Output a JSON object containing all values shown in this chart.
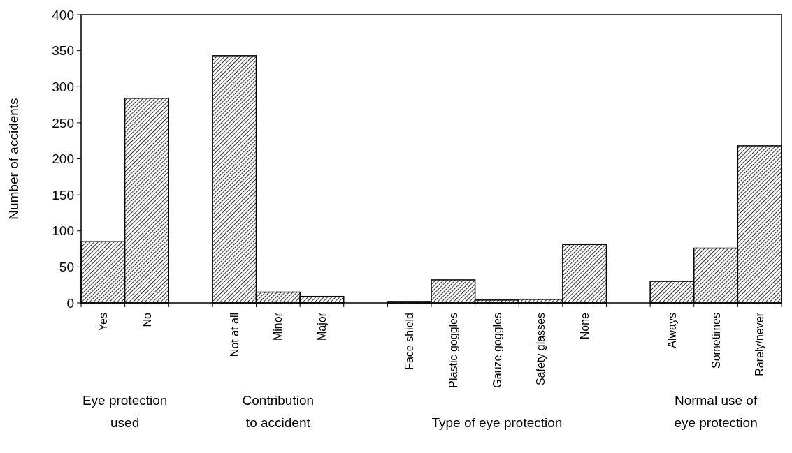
{
  "chart_data": {
    "type": "bar",
    "ylabel": "Number of accidents",
    "categories": [
      "Yes",
      "No",
      null,
      "Not at all",
      "Minor",
      "Major",
      null,
      "Face shield",
      "Plastic goggles",
      "Gauze goggles",
      "Safety glasses",
      "None",
      null,
      "Always",
      "Sometimes",
      "Rarely/never"
    ],
    "values": [
      85,
      284,
      null,
      343,
      15,
      9,
      null,
      2,
      32,
      4,
      5,
      81,
      null,
      30,
      76,
      218
    ],
    "color": "#000000",
    "ylim": [
      0,
      400
    ],
    "yticks": [
      0,
      50,
      100,
      150,
      200,
      250,
      300,
      350,
      400
    ],
    "grid": false,
    "annotations": [
      "Eye protection\nused",
      "Contribution\nto accident",
      "Type of eye protection",
      "Normal use of\neye protection"
    ]
  }
}
